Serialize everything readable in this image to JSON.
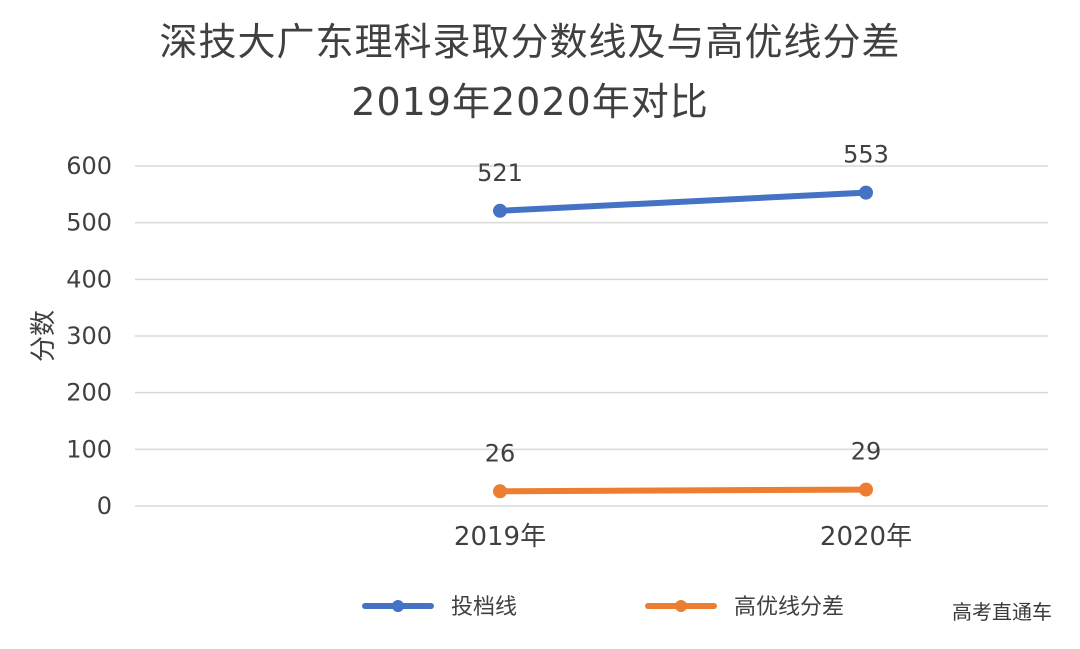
{
  "chart_data": {
    "type": "line",
    "title": "深技大广东理科录取分数线及与高优线分差",
    "subtitle": "2019年2020年对比",
    "xlabel": "",
    "ylabel": "分数",
    "categories": [
      "2019年",
      "2020年"
    ],
    "ylim": [
      0,
      600
    ],
    "yticks": [
      0,
      100,
      200,
      300,
      400,
      500,
      600
    ],
    "grid": true,
    "legend_position": "bottom",
    "series": [
      {
        "name": "投档线",
        "values": [
          521,
          553
        ],
        "color": "#4472C4"
      },
      {
        "name": "高优线分差",
        "values": [
          26,
          29
        ],
        "color": "#ED7D31"
      }
    ]
  },
  "watermark": "高考直通车"
}
